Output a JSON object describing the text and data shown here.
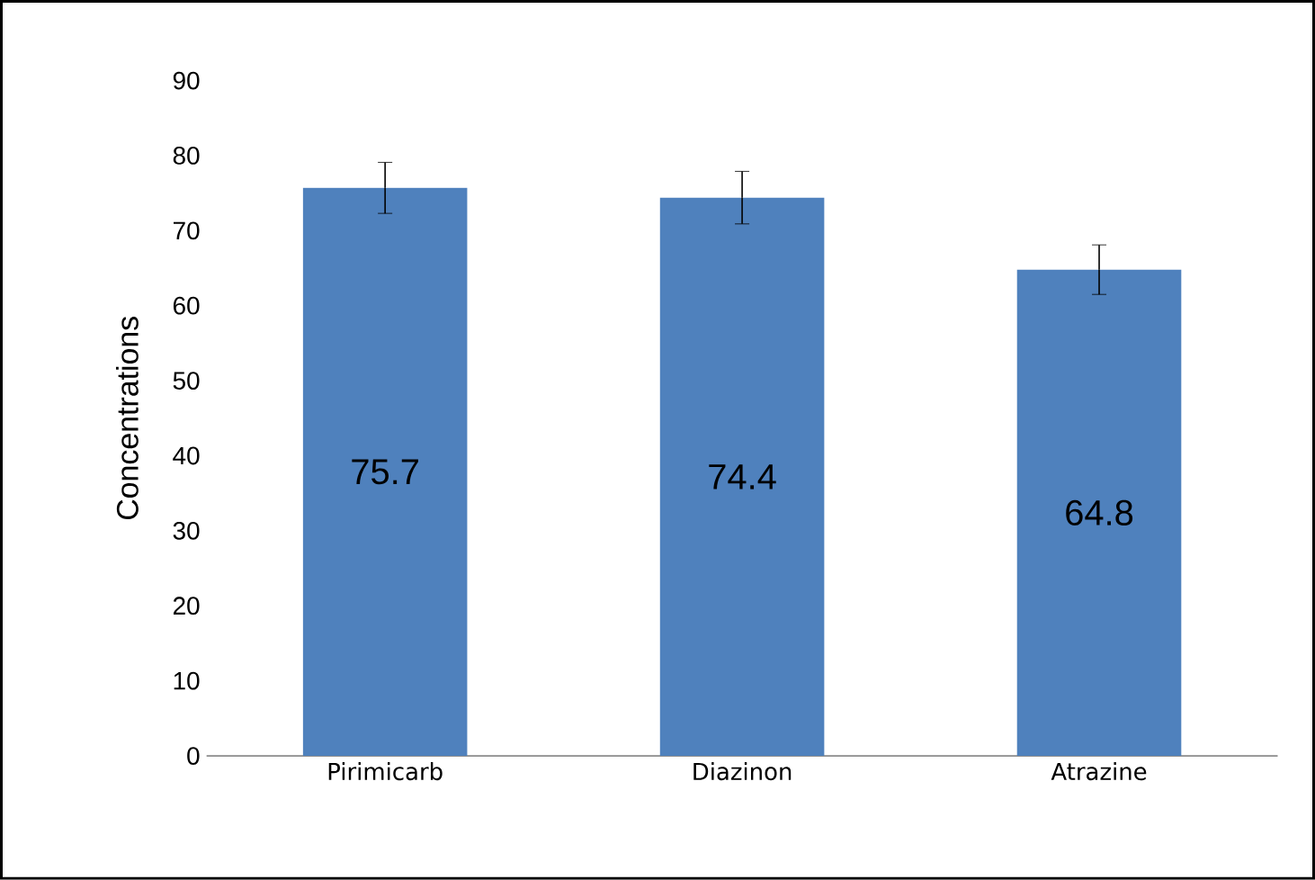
{
  "chart_data": {
    "type": "bar",
    "ylabel": "Concentrations",
    "categories": [
      "Pirimicarb",
      "Diazinon",
      "Atrazine"
    ],
    "values": [
      75.7,
      74.4,
      64.8
    ],
    "errors": [
      3.4,
      3.5,
      3.3
    ],
    "color": "#4f81bd",
    "data_labels": true,
    "ylim": [
      0,
      90
    ],
    "yticks": [
      0,
      10,
      20,
      30,
      40,
      50,
      60,
      70,
      80,
      90
    ]
  }
}
